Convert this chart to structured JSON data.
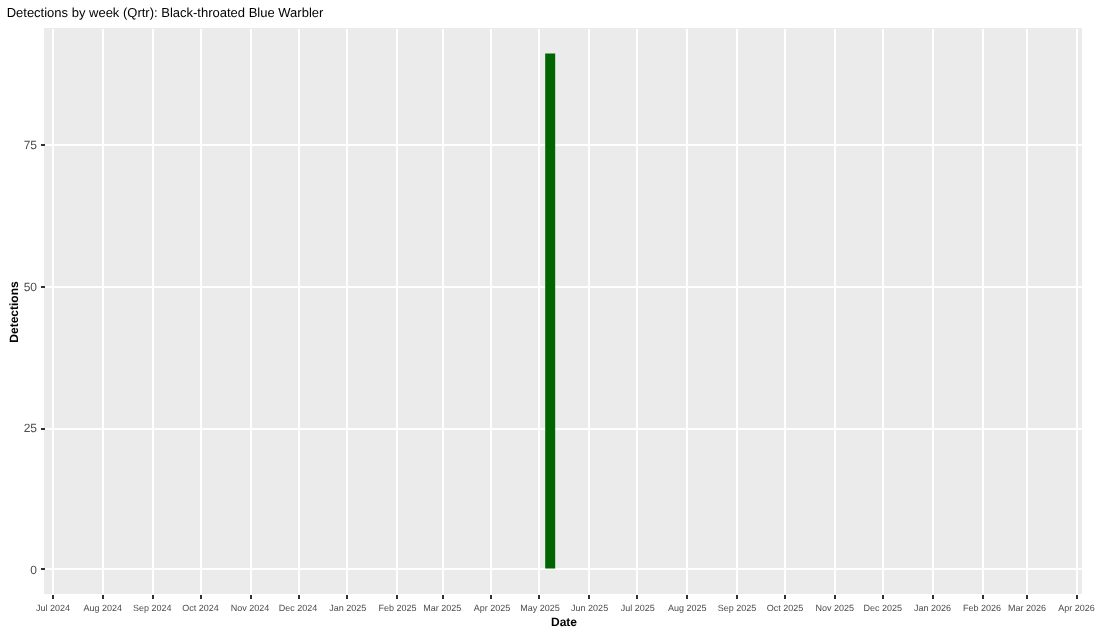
{
  "chart_data": {
    "type": "bar",
    "title": "Detections by week (Qrtr): Black-throated Blue Warbler",
    "xlabel": "Date",
    "ylabel": "Detections",
    "x": [
      "2025-05-08"
    ],
    "series": [
      {
        "color": "#006400",
        "values": [
          91
        ]
      }
    ],
    "xlim": [
      "2024-06-26",
      "2026-04-05"
    ],
    "xticks": [
      {
        "value": "2024-07-01",
        "label": "Jul 2024"
      },
      {
        "value": "2024-08-01",
        "label": "Aug 2024"
      },
      {
        "value": "2024-09-01",
        "label": "Sep 2024"
      },
      {
        "value": "2024-10-01",
        "label": "Oct 2024"
      },
      {
        "value": "2024-11-01",
        "label": "Nov 2024"
      },
      {
        "value": "2024-12-01",
        "label": "Dec 2024"
      },
      {
        "value": "2025-01-01",
        "label": "Jan 2025"
      },
      {
        "value": "2025-02-01",
        "label": "Feb 2025"
      },
      {
        "value": "2025-03-01",
        "label": "Mar 2025"
      },
      {
        "value": "2025-04-01",
        "label": "Apr 2025"
      },
      {
        "value": "2025-05-01",
        "label": "May 2025"
      },
      {
        "value": "2025-06-01",
        "label": "Jun 2025"
      },
      {
        "value": "2025-07-01",
        "label": "Jul 2025"
      },
      {
        "value": "2025-08-01",
        "label": "Aug 2025"
      },
      {
        "value": "2025-09-01",
        "label": "Sep 2025"
      },
      {
        "value": "2025-10-01",
        "label": "Oct 2025"
      },
      {
        "value": "2025-11-01",
        "label": "Nov 2025"
      },
      {
        "value": "2025-12-01",
        "label": "Dec 2025"
      },
      {
        "value": "2026-01-01",
        "label": "Jan 2026"
      },
      {
        "value": "2026-02-01",
        "label": "Feb 2026"
      },
      {
        "value": "2026-03-01",
        "label": "Mar 2026"
      },
      {
        "value": "2026-04-01",
        "label": "Apr 2026"
      }
    ],
    "ylim": [
      -4.5,
      95.5
    ],
    "yticks": [
      0,
      25,
      50,
      75
    ],
    "grid": true
  }
}
